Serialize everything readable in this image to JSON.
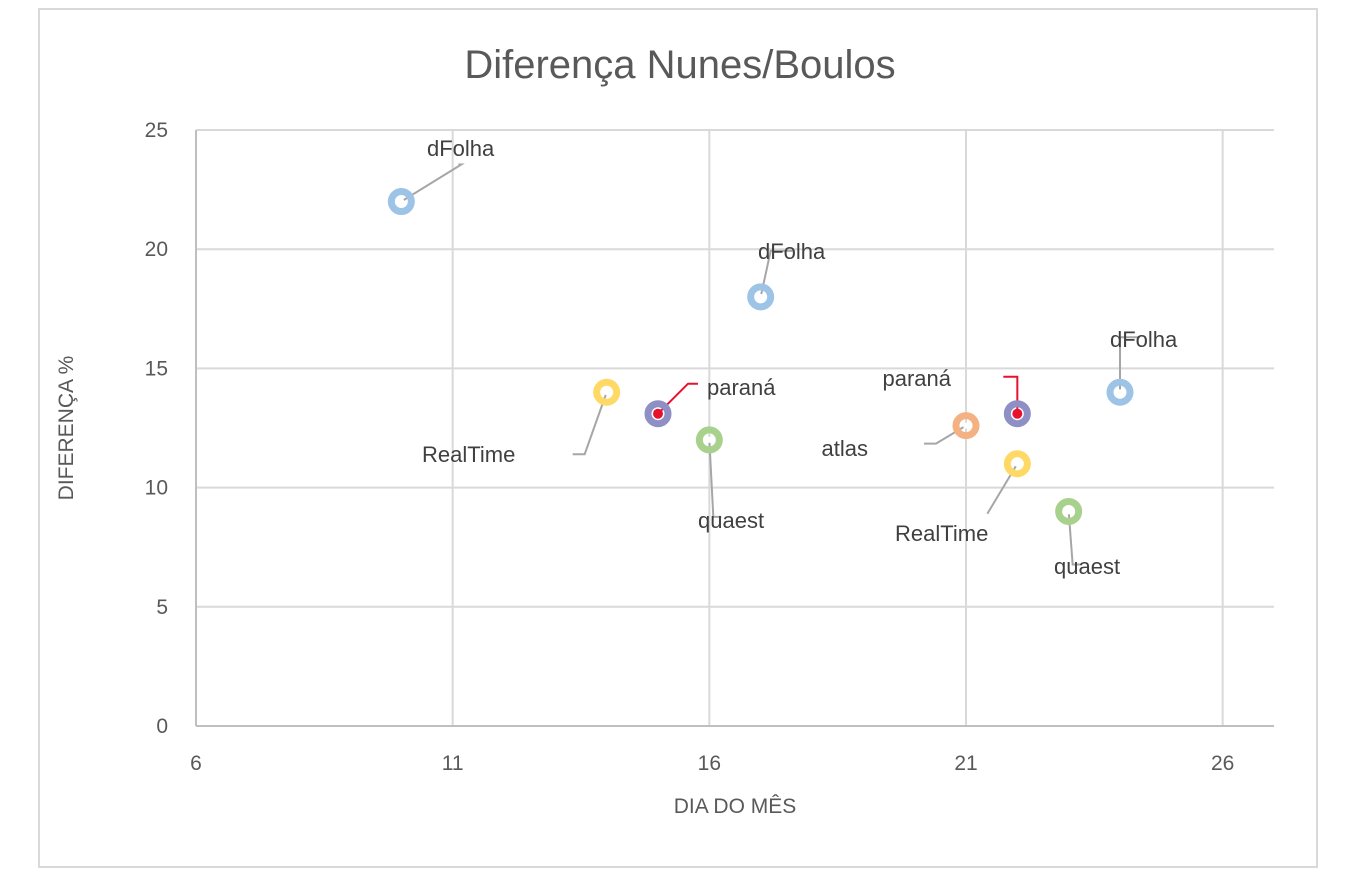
{
  "chart_data": {
    "type": "scatter",
    "title": "Diferença Nunes/Boulos",
    "xlabel": "DIA DO MÊS",
    "ylabel": "DIFERENÇA %",
    "xlim": [
      6,
      27
    ],
    "ylim": [
      0,
      25
    ],
    "xticks": [
      6,
      11,
      16,
      21,
      26
    ],
    "yticks": [
      0,
      5,
      10,
      15,
      20,
      25
    ],
    "grid": true,
    "points": [
      {
        "x": 10,
        "y": 22,
        "label": "dFolha",
        "color": "#9dc3e6",
        "leader_color": "#a6a6a6"
      },
      {
        "x": 17,
        "y": 18,
        "label": "dFolha",
        "color": "#9dc3e6",
        "leader_color": "#a6a6a6"
      },
      {
        "x": 24,
        "y": 14,
        "label": "dFolha",
        "color": "#9dc3e6",
        "leader_color": "#a6a6a6"
      },
      {
        "x": 14,
        "y": 14,
        "label": "RealTime",
        "color": "#ffd966",
        "leader_color": "#a6a6a6"
      },
      {
        "x": 22,
        "y": 11,
        "label": "RealTime",
        "color": "#ffd966",
        "leader_color": "#a6a6a6"
      },
      {
        "x": 15,
        "y": 13.1,
        "label": "paraná",
        "color": "#8e8fc4",
        "inner": "#e8112d",
        "leader_color": "#e8112d"
      },
      {
        "x": 22,
        "y": 13.1,
        "label": "paraná",
        "color": "#8e8fc4",
        "inner": "#e8112d",
        "leader_color": "#e8112d"
      },
      {
        "x": 16,
        "y": 12,
        "label": "quaest",
        "color": "#a9d18e",
        "leader_color": "#a6a6a6"
      },
      {
        "x": 23,
        "y": 9,
        "label": "quaest",
        "color": "#a9d18e",
        "leader_color": "#a6a6a6"
      },
      {
        "x": 21,
        "y": 12.6,
        "label": "atlas",
        "color": "#f4b183",
        "leader_color": "#a6a6a6"
      }
    ]
  }
}
